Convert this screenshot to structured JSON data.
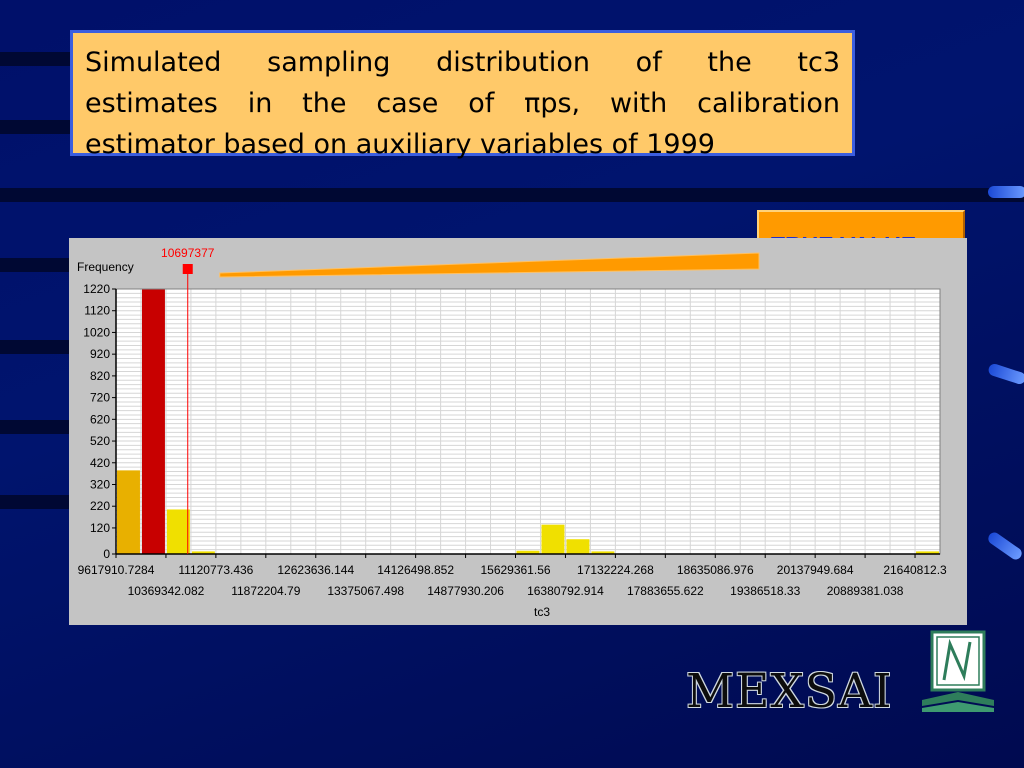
{
  "slide": {
    "title_lines": [
      "Simulated sampling distribution of the tc3",
      "estimates in the case of πps, with calibration",
      "estimator based on auxiliary variables of 1999"
    ],
    "callout": "TRUE VALUE",
    "logo": "MEXSAI",
    "colors": {
      "background": "#00106a",
      "title_box": "#ffc969",
      "callout_box": "#ff9a00",
      "callout_text": "#2230c8"
    }
  },
  "chart_data": {
    "type": "bar",
    "ylabel": "Frequency",
    "xlabel": "tc3",
    "ylim": [
      0,
      1220
    ],
    "yticks": [
      0,
      120,
      220,
      320,
      420,
      520,
      620,
      720,
      820,
      920,
      1020,
      1120,
      1220
    ],
    "grid": true,
    "xticks_row1": [
      "9617910.7284",
      "11120773.436",
      "12623636.144",
      "14126498.852",
      "15629361.56",
      "17132224.268",
      "18635086.976",
      "20137949.684",
      "21640812.3"
    ],
    "xticks_row2": [
      "10369342.082",
      "11872204.79",
      "13375067.498",
      "14877930.206",
      "16380792.914",
      "17883655.622",
      "19386518.33",
      "20889381.038"
    ],
    "bin_start": 9617910.7284,
    "bin_width": 375715.677,
    "bins": [
      {
        "index": 0,
        "value": 385,
        "color": "#e8b000"
      },
      {
        "index": 1,
        "value": 1220,
        "color": "#c80000"
      },
      {
        "index": 2,
        "value": 205,
        "color": "#f0e000"
      },
      {
        "index": 3,
        "value": 12,
        "color": "#f0e000"
      },
      {
        "index": 16,
        "value": 15,
        "color": "#f0e000"
      },
      {
        "index": 17,
        "value": 135,
        "color": "#f0e000"
      },
      {
        "index": 18,
        "value": 68,
        "color": "#f0e000"
      },
      {
        "index": 19,
        "value": 12,
        "color": "#f0e000"
      },
      {
        "index": 32,
        "value": 12,
        "color": "#f0e000"
      }
    ],
    "marker": {
      "label": "10697377",
      "value": 10697377,
      "color": "#ff0000"
    }
  }
}
